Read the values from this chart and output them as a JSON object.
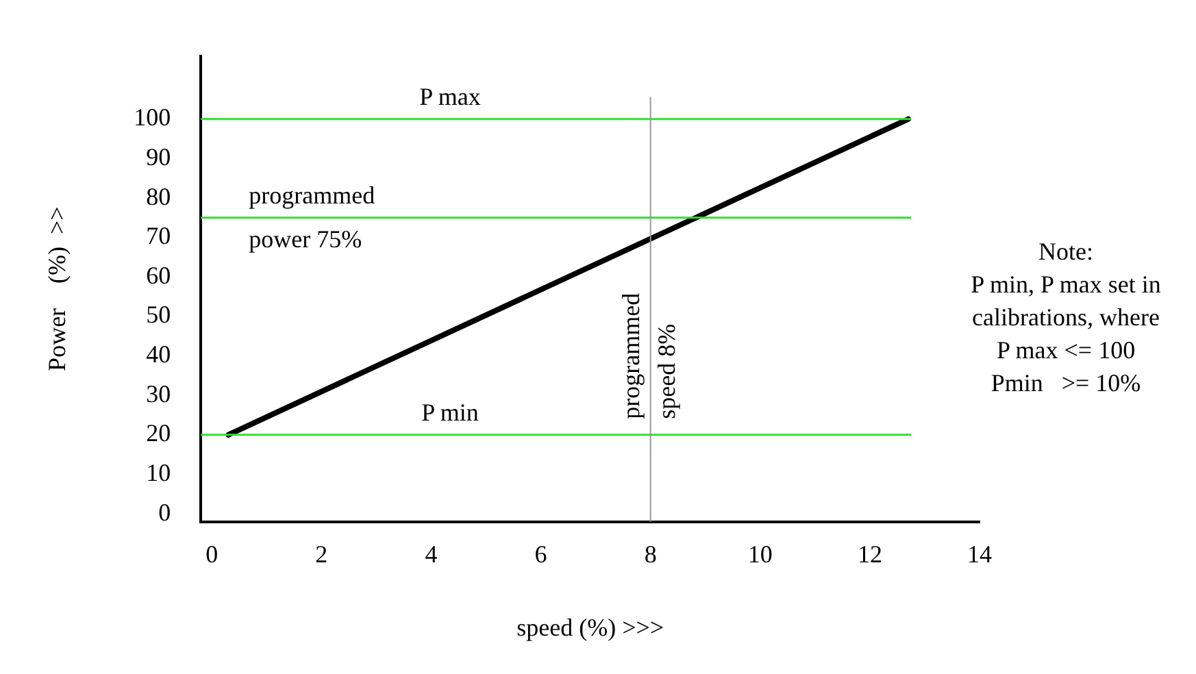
{
  "chart_data": {
    "type": "line",
    "xlabel": "speed (%) >>>",
    "ylabel": "Power    (%)  >>",
    "series": [
      {
        "color": "#000000",
        "x": [
          0.3,
          12.7
        ],
        "values": [
          20,
          100
        ]
      }
    ],
    "xlim": [
      -0.2,
      14
    ],
    "ylim": [
      -2,
      116
    ],
    "xticks": [
      0,
      2,
      4,
      6,
      8,
      10,
      12,
      14
    ],
    "yticks": [
      0,
      10,
      20,
      30,
      40,
      50,
      60,
      70,
      80,
      90,
      100
    ],
    "grid": false,
    "legend": false,
    "marker": "none",
    "line_style": "solid",
    "ref_lines": [
      {
        "axis": "y",
        "value": 100,
        "label": "P max",
        "color": "#33dd33"
      },
      {
        "axis": "y",
        "value": 75,
        "label": "programmed power 75%",
        "color": "#33dd33"
      },
      {
        "axis": "y",
        "value": 20,
        "label": "P min",
        "color": "#33dd33"
      },
      {
        "axis": "x",
        "value": 8,
        "label": "programmed speed 8%",
        "color": "#999999"
      }
    ],
    "annotations": [
      "Note:",
      "P min, P max set in",
      "calibrations, where",
      "P max <= 100",
      "Pmin   >= 10%"
    ]
  }
}
